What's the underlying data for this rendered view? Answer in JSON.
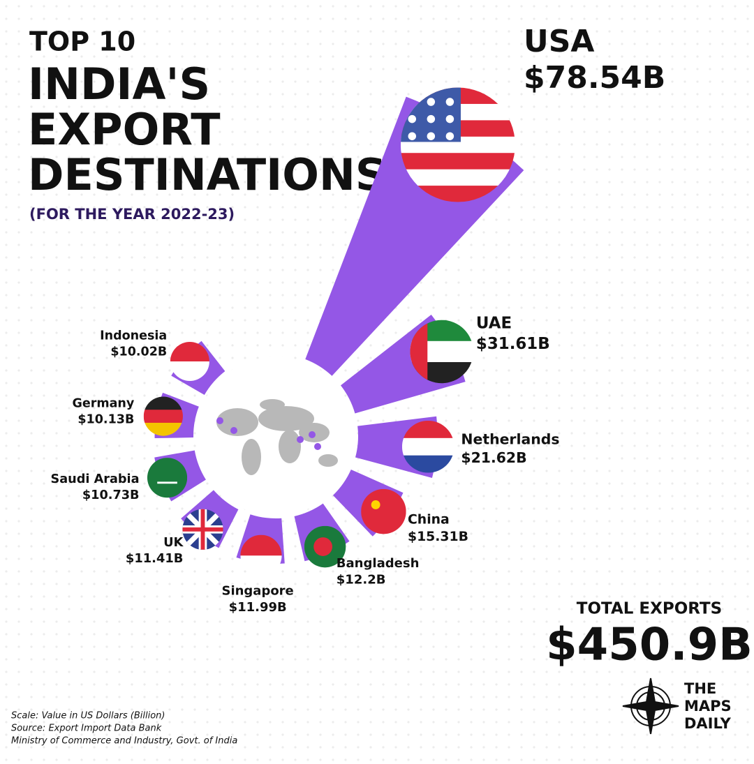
{
  "chart_data": {
    "type": "radial_bar",
    "title_lines": [
      "TOP 10",
      "INDIA'S",
      "EXPORT",
      "DESTINATIONS"
    ],
    "subtitle": "(FOR THE YEAR 2022-23)",
    "categories": [
      "USA",
      "UAE",
      "Netherlands",
      "China",
      "Bangladesh",
      "Singapore",
      "UK",
      "Saudi Arabia",
      "Germany",
      "Indonesia"
    ],
    "values": [
      78.54,
      31.61,
      21.62,
      15.31,
      12.2,
      11.99,
      11.41,
      10.73,
      10.13,
      10.02
    ],
    "value_labels": [
      "$78.54B",
      "$31.61B",
      "$21.62B",
      "$15.31B",
      "$12.2B",
      "$11.99B",
      "$11.41B",
      "$10.73B",
      "$10.13B",
      "$10.02B"
    ],
    "color": "#9457e6",
    "total_title": "TOTAL EXPORTS",
    "total": "$450.9B",
    "notes": [
      "Scale: Value in US Dollars (Billion)",
      "Source: Export Import Data Bank",
      "Ministry of Commerce and Industry, Govt. of India"
    ],
    "brand": [
      "THE",
      "MAPS",
      "DAILY"
    ]
  }
}
